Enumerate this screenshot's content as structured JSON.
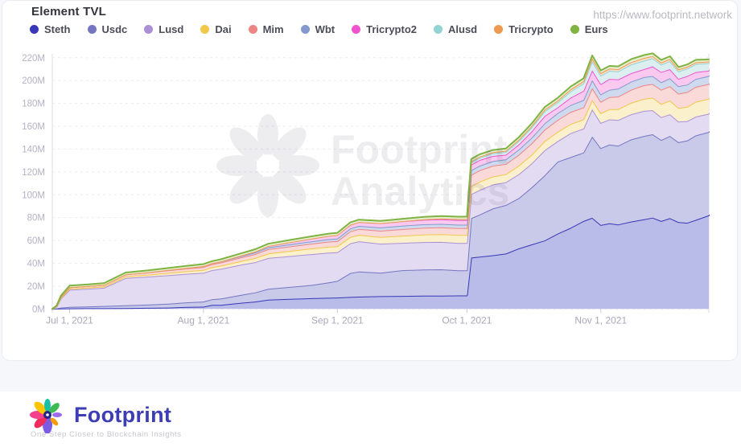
{
  "header": {
    "title": "Element TVL",
    "url": "https://www.footprint.network"
  },
  "watermark": {
    "line1": "Footprint",
    "line2": "Analytics"
  },
  "footer": {
    "brand": "Footprint",
    "tagline": "One Step Closer to Blockchain Insights",
    "brand_color": "#3d3db5",
    "petal_colors": [
      "#7b5ce5",
      "#ee2d5e",
      "#f43f8e",
      "#fdc500",
      "#19c0a8",
      "#3dba54",
      "#9a6cf0",
      "#f59e0b"
    ]
  },
  "chart_data": {
    "type": "area",
    "stacked": true,
    "title": "Element TVL",
    "unit": "millions USD",
    "grid": "dashed-horizontal",
    "legend_position": "top",
    "ylim": [
      0,
      230
    ],
    "x_domain_days": 152,
    "x_start_date": "Jun 27, 2021",
    "x_end_date": "Nov 26, 2021",
    "days": [
      0,
      1,
      2,
      4,
      8,
      12,
      17,
      22,
      27,
      31,
      35,
      37,
      39,
      44,
      47,
      50,
      55,
      60,
      64,
      66,
      69,
      71,
      76,
      81,
      86,
      90,
      94,
      96,
      97,
      99,
      102,
      105,
      108,
      111,
      114,
      117,
      120,
      123,
      125,
      127,
      129,
      131,
      134,
      137,
      139,
      141,
      143,
      145,
      147,
      149,
      152
    ],
    "x_ticks": [
      {
        "day": 4,
        "label": "Jul 1, 2021"
      },
      {
        "day": 35,
        "label": "Aug 1, 2021"
      },
      {
        "day": 66,
        "label": "Sep 1, 2021"
      },
      {
        "day": 96,
        "label": "Oct 1, 2021"
      },
      {
        "day": 127,
        "label": "Nov 1, 2021"
      }
    ],
    "y_ticks": [
      0,
      20,
      40,
      60,
      80,
      100,
      120,
      140,
      160,
      180,
      200,
      220
    ],
    "y_tick_labels": [
      "0M",
      "20M",
      "40M",
      "60M",
      "80M",
      "100M",
      "120M",
      "140M",
      "160M",
      "180M",
      "200M",
      "220M"
    ],
    "series": [
      {
        "name": "Steth",
        "color": "#3838b8",
        "fill": "#b9bbe9",
        "values": [
          0,
          0.2,
          0.4,
          0.5,
          0.6,
          0.6,
          0.8,
          1.0,
          1.2,
          1.8,
          2.0,
          3.5,
          3.6,
          5.5,
          6.5,
          8.2,
          8.8,
          9.4,
          9.8,
          10.0,
          10.5,
          10.8,
          11.2,
          11.4,
          11.6,
          11.7,
          11.8,
          11.8,
          45.0,
          45.8,
          47.0,
          48.5,
          53.0,
          56.5,
          60.0,
          66.0,
          71.0,
          77.0,
          79.8,
          73.5,
          75.0,
          74.0,
          76.5,
          78.5,
          80.0,
          77.0,
          79.5,
          76.0,
          75.5,
          78.0,
          82.0
        ]
      },
      {
        "name": "Usdc",
        "color": "#7476c2",
        "fill": "#c9c9e9",
        "values": [
          0,
          0.3,
          0.8,
          1.3,
          1.6,
          2.0,
          2.4,
          2.8,
          3.4,
          4.0,
          4.5,
          5.0,
          5.5,
          7.0,
          8.0,
          9.4,
          10.5,
          11.6,
          13.5,
          14.6,
          21.0,
          22.0,
          20.5,
          22.5,
          23.0,
          23.0,
          22.0,
          22.0,
          34.5,
          37.0,
          41.0,
          42.5,
          44.0,
          50.0,
          57.0,
          63.0,
          62.0,
          60.0,
          71.2,
          67.4,
          69.0,
          69.0,
          72.0,
          73.0,
          73.0,
          71.0,
          72.0,
          70.0,
          72.0,
          74.0,
          73.0
        ]
      },
      {
        "name": "Lusd",
        "color": "#ab90d6",
        "fill": "#e3dbf2",
        "values": [
          0,
          1.5,
          8.0,
          15.0,
          15.5,
          16.0,
          24.0,
          24.5,
          25.0,
          25.0,
          25.2,
          25.5,
          26.0,
          26.5,
          26.5,
          27.0,
          27.0,
          27.0,
          26.0,
          25.0,
          26.0,
          26.5,
          25.5,
          24.0,
          24.0,
          24.0,
          24.0,
          24.0,
          21.0,
          21.5,
          21.0,
          20.0,
          21.0,
          21.0,
          22.0,
          18.0,
          21.0,
          21.0,
          24.0,
          22.0,
          22.0,
          22.5,
          22.0,
          22.0,
          21.0,
          20.0,
          19.0,
          18.0,
          17.0,
          16.5,
          16.0
        ]
      },
      {
        "name": "Dai",
        "color": "#f2c84b",
        "fill": "#fbf0cc",
        "values": [
          0,
          0.2,
          0.6,
          1.0,
          1.0,
          1.1,
          1.3,
          1.6,
          2.0,
          2.2,
          2.5,
          2.6,
          2.8,
          3.2,
          3.6,
          4.0,
          4.5,
          5.0,
          5.2,
          5.3,
          5.5,
          5.6,
          5.8,
          6.2,
          6.5,
          6.8,
          7.0,
          7.0,
          7.0,
          7.2,
          7.0,
          7.0,
          7.5,
          7.5,
          8.0,
          8.0,
          8.0,
          8.0,
          8.0,
          8.5,
          9.0,
          9.5,
          10.0,
          10.5,
          11.0,
          11.5,
          12.0,
          12.0,
          12.5,
          13.0,
          13.0
        ]
      },
      {
        "name": "Mim",
        "color": "#ee8585",
        "fill": "#fad9d9",
        "values": [
          0,
          0.3,
          0.8,
          1.2,
          1.3,
          1.5,
          1.8,
          2.0,
          2.3,
          2.4,
          2.5,
          2.6,
          2.8,
          3.2,
          3.5,
          3.8,
          4.0,
          4.2,
          4.5,
          4.5,
          5.0,
          5.2,
          5.5,
          5.8,
          6.0,
          6.0,
          6.0,
          6.0,
          10.0,
          10.0,
          9.5,
          9.0,
          9.5,
          10.0,
          10.0,
          10.5,
          10.5,
          10.5,
          10.5,
          10.0,
          10.5,
          11.0,
          11.5,
          12.0,
          12.0,
          12.5,
          12.5,
          12.5,
          13.0,
          13.0,
          13.0
        ]
      },
      {
        "name": "Wbt",
        "color": "#8499cd",
        "fill": "#d0daee",
        "values": [
          0,
          0,
          0,
          0,
          0,
          0,
          0,
          0.2,
          0.4,
          0.6,
          0.8,
          0.9,
          1.0,
          1.2,
          1.4,
          1.5,
          1.8,
          2.0,
          2.2,
          2.3,
          2.5,
          2.6,
          2.8,
          3.0,
          3.0,
          3.0,
          3.0,
          3.0,
          4.0,
          4.0,
          4.0,
          4.0,
          4.5,
          5.0,
          5.5,
          6.0,
          6.0,
          6.5,
          7.0,
          6.5,
          6.5,
          7.0,
          7.0,
          7.0,
          7.0,
          6.5,
          7.0,
          6.5,
          6.5,
          7.0,
          7.0
        ]
      },
      {
        "name": "Tricrypto2",
        "color": "#ee55cd",
        "fill": "#fbc9f0",
        "values": [
          0,
          0,
          0,
          0,
          0,
          0,
          0,
          0,
          0,
          0,
          0,
          0,
          0,
          0.5,
          0.8,
          1.2,
          1.8,
          2.4,
          2.8,
          3.0,
          3.3,
          3.5,
          3.8,
          4.0,
          4.0,
          4.0,
          4.0,
          4.0,
          5.0,
          5.0,
          4.5,
          4.0,
          4.5,
          5.5,
          6.5,
          5.0,
          6.5,
          8.0,
          8.5,
          9.0,
          9.5,
          8.0,
          7.5,
          7.0,
          8.5,
          9.0,
          8.0,
          6.5,
          7.5,
          6.0,
          4.7
        ]
      },
      {
        "name": "Alusd",
        "color": "#92d4d6",
        "fill": "#dbeff1",
        "values": [
          0,
          0,
          0,
          0,
          0,
          0,
          0,
          0,
          0,
          0,
          0,
          0,
          0,
          0,
          0,
          0,
          0,
          0,
          0,
          0,
          0,
          0,
          0,
          0,
          0.5,
          0.8,
          1.0,
          1.0,
          2.0,
          2.0,
          2.2,
          2.5,
          3.0,
          3.5,
          4.0,
          4.5,
          5.5,
          6.5,
          8.0,
          7.5,
          7.0,
          7.0,
          7.5,
          7.5,
          7.0,
          6.5,
          7.0,
          6.5,
          6.5,
          7.0,
          6.5
        ]
      },
      {
        "name": "Tricrypto",
        "color": "#ef9950",
        "fill": "#fadfc7",
        "values": [
          0,
          0,
          0,
          0,
          0,
          0,
          0,
          0,
          0,
          0,
          0,
          0,
          0,
          0,
          0,
          0,
          0,
          0,
          0,
          0,
          0,
          0,
          0,
          0,
          0,
          0,
          0,
          0,
          0.8,
          1.0,
          1.0,
          1.0,
          1.2,
          1.2,
          1.5,
          1.5,
          1.8,
          2.0,
          2.5,
          2.2,
          2.0,
          2.0,
          2.2,
          2.3,
          2.0,
          1.8,
          2.0,
          1.8,
          1.6,
          1.5,
          1.5
        ]
      },
      {
        "name": "Eurs",
        "color": "#7fb342",
        "fill": "#e6efd4",
        "values": [
          0,
          0.5,
          1.0,
          1.4,
          1.4,
          1.5,
          1.6,
          1.6,
          1.7,
          1.7,
          1.8,
          1.8,
          1.8,
          1.9,
          2.0,
          2.0,
          2.0,
          2.0,
          2.0,
          2.0,
          2.0,
          2.0,
          2.0,
          2.0,
          2.0,
          2.0,
          2.0,
          2.0,
          2.0,
          2.0,
          2.0,
          2.0,
          2.2,
          2.2,
          2.3,
          2.3,
          2.4,
          2.4,
          2.5,
          2.3,
          2.3,
          2.4,
          2.5,
          2.5,
          2.4,
          2.2,
          2.3,
          2.0,
          2.0,
          2.2,
          1.8
        ]
      }
    ]
  }
}
